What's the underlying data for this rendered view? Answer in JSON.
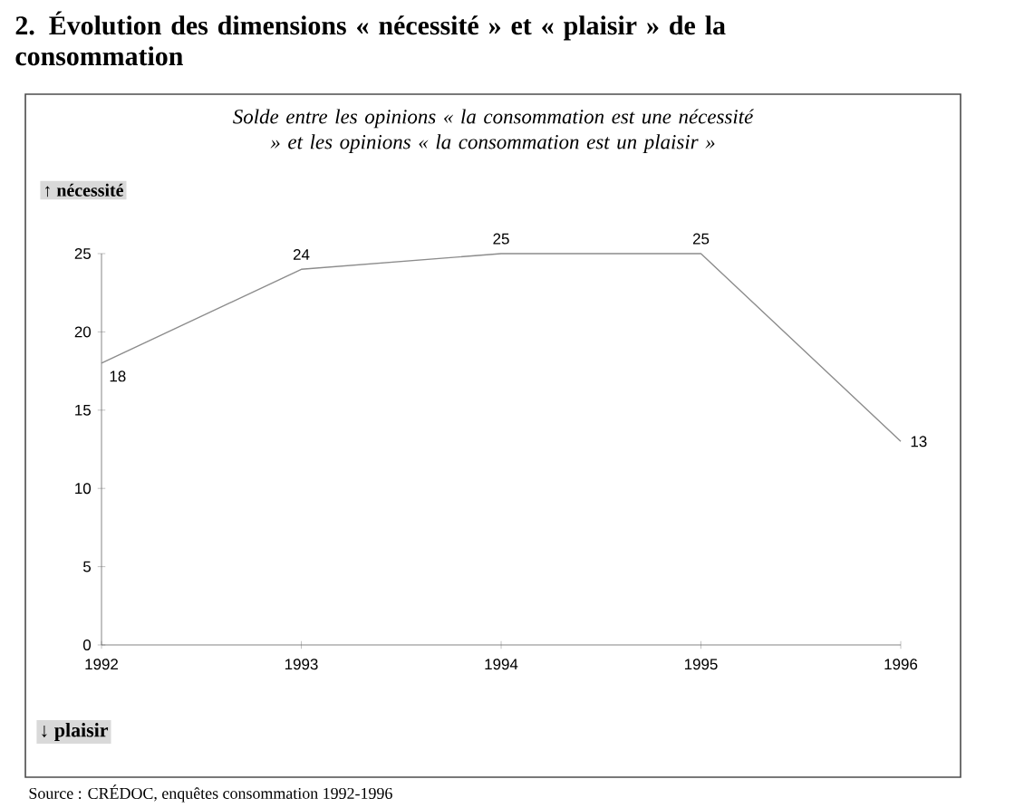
{
  "chart_data": {
    "type": "line",
    "title": "2.   Évolution des dimensions « nécessité » et « plaisir » de la consommation",
    "subtitle": "Solde entre les opinions « la consommation est une nécessité » et les opinions « la consommation est un plaisir »",
    "categories": [
      "1992",
      "1993",
      "1994",
      "1995",
      "1996"
    ],
    "values": [
      18,
      24,
      25,
      25,
      13
    ],
    "color": "#8c8c8c",
    "ylim": [
      0,
      25
    ],
    "yticks": [
      0,
      5,
      10,
      15,
      20,
      25
    ],
    "data_labels": true,
    "grid": false,
    "marker": "none",
    "line_style": "solid",
    "annotations": [
      "↑ nécessité",
      "↓ plaisir",
      "Source : CRÉDOC, enquêtes consommation 1992-1996"
    ]
  }
}
